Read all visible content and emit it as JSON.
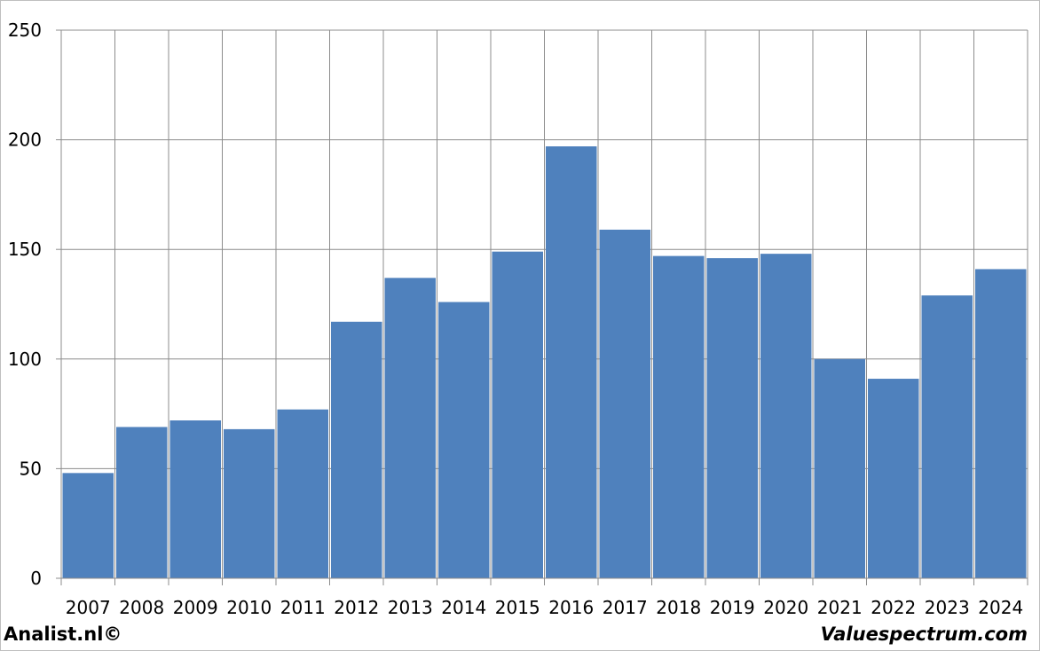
{
  "chart_data": {
    "type": "bar",
    "categories": [
      "2007",
      "2008",
      "2009",
      "2010",
      "2011",
      "2012",
      "2013",
      "2014",
      "2015",
      "2016",
      "2017",
      "2018",
      "2019",
      "2020",
      "2021",
      "2022",
      "2023",
      "2024"
    ],
    "values": [
      48,
      69,
      72,
      68,
      77,
      117,
      137,
      126,
      149,
      197,
      159,
      147,
      146,
      148,
      100,
      91,
      129,
      141
    ],
    "ylim": [
      0,
      250
    ],
    "yticks": [
      0,
      50,
      100,
      150,
      200,
      250
    ],
    "grid": true,
    "bar_color": "#4f81bd",
    "title": "",
    "xlabel": "",
    "ylabel": ""
  },
  "footer": {
    "left_text": "Analist.nl©",
    "right_text": "Valuespectrum.com"
  }
}
